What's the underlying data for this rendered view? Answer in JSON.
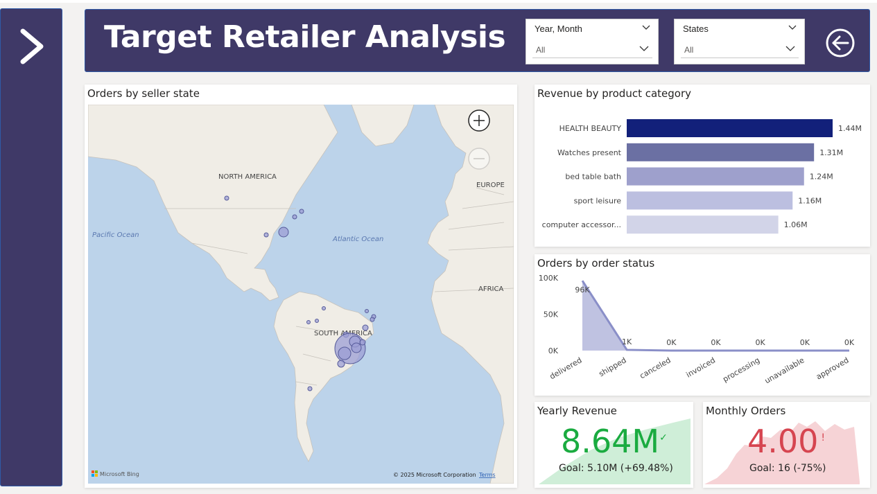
{
  "header": {
    "title": "Target Retailer Analysis",
    "accent": "#3f3967"
  },
  "nav": {
    "expand_icon": "chevron-right-icon",
    "back_icon": "arrow-left-circle-icon"
  },
  "filters": {
    "year_month": {
      "label": "Year, Month",
      "value": "All"
    },
    "states": {
      "label": "States",
      "value": "All"
    }
  },
  "map_visual": {
    "title": "Orders by seller state",
    "labels": {
      "north_america": "NORTH AMERICA",
      "europe": "EUROPE",
      "pacific": "Pacific Ocean",
      "atlantic": "Atlantic Ocean",
      "africa": "AFRICA",
      "south_america": "SOUTH AMERICA"
    },
    "attribution": "© 2025 Microsoft Corporation",
    "terms": "Terms",
    "provider": "Microsoft Bing",
    "controls": {
      "zoom_in_icon": "plus-circle-icon",
      "zoom_out_icon": "minus-circle-icon"
    }
  },
  "revenue_visual": {
    "title": "Revenue by product category",
    "colors": [
      "#12207a",
      "#6b70a3",
      "#9ea0cc",
      "#bcbfe0",
      "#d2d4e8"
    ]
  },
  "status_visual": {
    "title": "Orders by order status",
    "color": "#8a8fc8"
  },
  "kpis": {
    "yearly_revenue": {
      "title": "Yearly Revenue",
      "value": "8.64M",
      "mark": "✓",
      "goal": "Goal: 5.10M (+69.48%)",
      "color": "#1aab40",
      "area_color": "#cfeed8"
    },
    "monthly_orders": {
      "title": "Monthly Orders",
      "value": "4.00",
      "mark": "!",
      "goal": "Goal: 16 (-75%)",
      "color": "#d64550",
      "area_color": "#f6d3d6"
    }
  },
  "chart_data": [
    {
      "type": "bar",
      "orientation": "horizontal",
      "title": "Revenue by product category",
      "categories": [
        "HEALTH BEAUTY",
        "Watches present",
        "bed table bath",
        "sport leisure",
        "computer accessor..."
      ],
      "values": [
        1.44,
        1.31,
        1.24,
        1.16,
        1.06
      ],
      "value_labels": [
        "1.44M",
        "1.31M",
        "1.24M",
        "1.16M",
        "1.06M"
      ],
      "unit": "M",
      "xlim": [
        0,
        1.44
      ]
    },
    {
      "type": "area",
      "title": "Orders by order status",
      "categories": [
        "delivered",
        "shipped",
        "canceled",
        "invoiced",
        "processing",
        "unavailable",
        "approved"
      ],
      "values": [
        96000,
        1000,
        0,
        0,
        0,
        0,
        0
      ],
      "value_labels": [
        "96K",
        "1K",
        "0K",
        "0K",
        "0K",
        "0K",
        "0K"
      ],
      "yticks": [
        "0K",
        "50K",
        "100K"
      ],
      "ylim": [
        0,
        100000
      ],
      "grid": false
    }
  ]
}
